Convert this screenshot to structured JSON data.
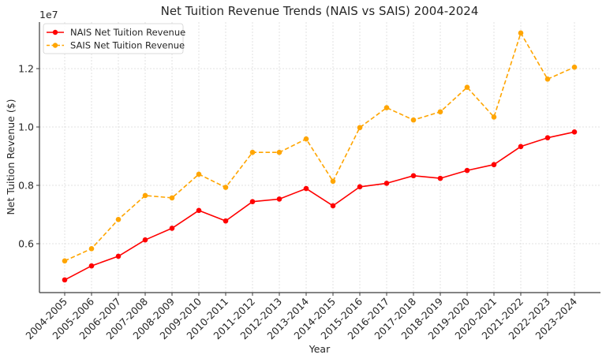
{
  "chart_data": {
    "type": "line",
    "title": "Net Tuition Revenue Trends (NAIS vs SAIS) 2004-2024",
    "xlabel": "Year",
    "ylabel": "Net Tuition Revenue ($)",
    "y_offset_label": "1e7",
    "ylim": [
      4400000,
      13700000
    ],
    "yticks": [
      6000000,
      8000000,
      10000000,
      12000000
    ],
    "ytick_labels": [
      "0.6",
      "0.8",
      "1.0",
      "1.2"
    ],
    "grid": true,
    "legend_position": "upper left",
    "categories": [
      "2004-2005",
      "2005-2006",
      "2006-2007",
      "2007-2008",
      "2008-2009",
      "2009-2010",
      "2010-2011",
      "2011-2012",
      "2012-2013",
      "2013-2014",
      "2014-2015",
      "2015-2016",
      "2016-2017",
      "2017-2018",
      "2018-2019",
      "2019-2020",
      "2020-2021",
      "2021-2022",
      "2022-2023",
      "2023-2024"
    ],
    "series": [
      {
        "name": "NAIS Net Tuition Revenue",
        "color": "#ff0000",
        "line_style": "solid",
        "marker": "circle",
        "values": [
          4760000,
          5240000,
          5570000,
          6130000,
          6530000,
          7140000,
          6780000,
          7440000,
          7530000,
          7890000,
          7300000,
          7950000,
          8070000,
          8330000,
          8240000,
          8510000,
          8710000,
          9330000,
          9630000,
          9830000
        ]
      },
      {
        "name": "SAIS Net Tuition Revenue",
        "color": "#ffa500",
        "line_style": "dashed",
        "marker": "circle",
        "values": [
          5410000,
          5830000,
          6830000,
          7650000,
          7570000,
          8380000,
          7930000,
          9130000,
          9130000,
          9590000,
          8140000,
          9980000,
          10660000,
          10240000,
          10520000,
          11360000,
          10340000,
          13220000,
          11640000,
          12050000
        ]
      }
    ]
  }
}
